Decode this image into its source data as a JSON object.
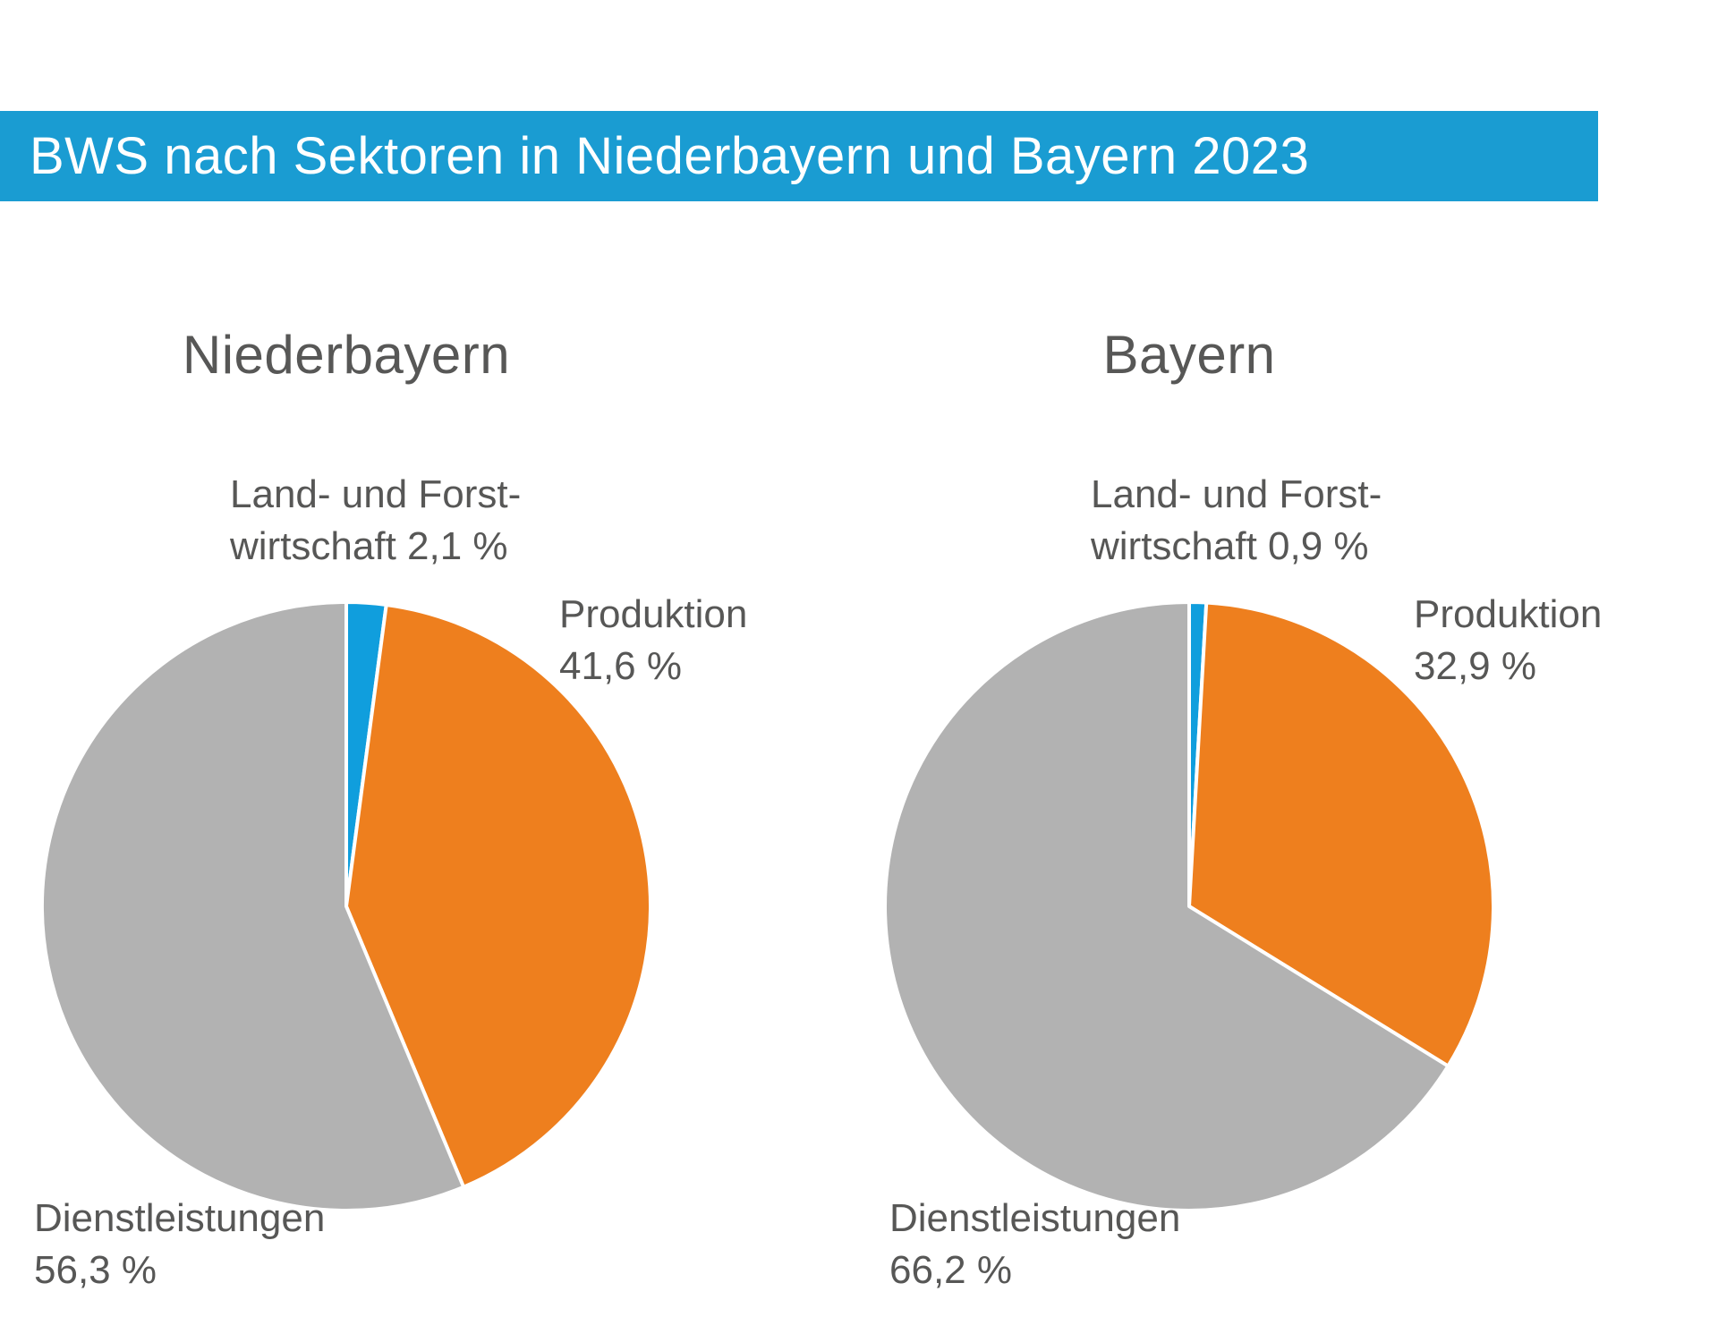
{
  "header": {
    "title": "BWS nach Sektoren in Niederbayern und Bayern 2023"
  },
  "colors": {
    "header_bar": "#1a9cd2",
    "agriculture_blue": "#109edd",
    "production_orange": "#ee7f1e",
    "services_gray": "#b2b2b2",
    "label_text": "#575756",
    "slice_border": "#ffffff"
  },
  "chart_data": [
    {
      "type": "pie",
      "region": "Niederbayern",
      "unit": "%",
      "start_angle": "12 o'clock, clockwise",
      "slices": [
        {
          "name": "Land- und Forstwirtschaft",
          "value": 2.1,
          "color": "#109edd",
          "label_lines": [
            "Land- und Forst-",
            "wirtschaft 2,1 %"
          ]
        },
        {
          "name": "Produktion",
          "value": 41.6,
          "color": "#ee7f1e",
          "label_lines": [
            "Produktion",
            "41,6 %"
          ]
        },
        {
          "name": "Dienstleistungen",
          "value": 56.3,
          "color": "#b2b2b2",
          "label_lines": [
            "Dienstleistungen",
            "56,3 %"
          ]
        }
      ]
    },
    {
      "type": "pie",
      "region": "Bayern",
      "unit": "%",
      "start_angle": "12 o'clock, clockwise",
      "slices": [
        {
          "name": "Land- und Forstwirtschaft",
          "value": 0.9,
          "color": "#109edd",
          "label_lines": [
            "Land- und Forst-",
            "wirtschaft 0,9 %"
          ]
        },
        {
          "name": "Produktion",
          "value": 32.9,
          "color": "#ee7f1e",
          "label_lines": [
            "Produktion",
            "32,9 %"
          ]
        },
        {
          "name": "Dienstleistungen",
          "value": 66.2,
          "color": "#b2b2b2",
          "label_lines": [
            "Dienstleistungen",
            "66,2 %"
          ]
        }
      ]
    }
  ]
}
